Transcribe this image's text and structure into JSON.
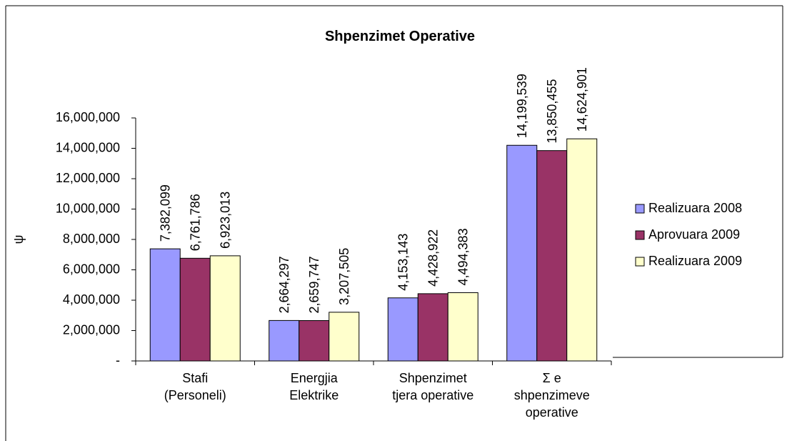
{
  "chart_data": {
    "type": "bar",
    "title": "Shpenzimet Operative",
    "y_label": "ψ",
    "categories": [
      "Stafi\n(Personeli)",
      "Energjia\nElektrike",
      "Shpenzimet\ntjera operative",
      "Σ e\nshpenzimeve\noperative"
    ],
    "series": [
      {
        "name": "Realizuara 2008",
        "color": "#9999ff",
        "values": [
          7382099,
          2664297,
          4153143,
          14199539
        ],
        "value_labels": [
          "7,382,099",
          "2,664,297",
          "4,153,143",
          "14,199,539"
        ]
      },
      {
        "name": "Aprovuara 2009",
        "color": "#993366",
        "values": [
          6761786,
          2659747,
          4428922,
          13850455
        ],
        "value_labels": [
          "6,761,786",
          "2,659,747",
          "4,428,922",
          "13,850,455"
        ]
      },
      {
        "name": "Realizuara 2009",
        "color": "#ffffcc",
        "values": [
          6923013,
          3207505,
          4494383,
          14624901
        ],
        "value_labels": [
          "6,923,013",
          "3,207,505",
          "4,494,383",
          "14,624,901"
        ]
      }
    ],
    "ylim": [
      0,
      16000000
    ],
    "yticks": [
      {
        "value": 0,
        "label": "-"
      },
      {
        "value": 2000000,
        "label": "2,000,000"
      },
      {
        "value": 4000000,
        "label": "4,000,000"
      },
      {
        "value": 6000000,
        "label": "6,000,000"
      },
      {
        "value": 8000000,
        "label": "8,000,000"
      },
      {
        "value": 10000000,
        "label": "10,000,000"
      },
      {
        "value": 12000000,
        "label": "12,000,000"
      },
      {
        "value": 14000000,
        "label": "14,000,000"
      },
      {
        "value": 16000000,
        "label": "16,000,000"
      }
    ],
    "legend": "right"
  }
}
